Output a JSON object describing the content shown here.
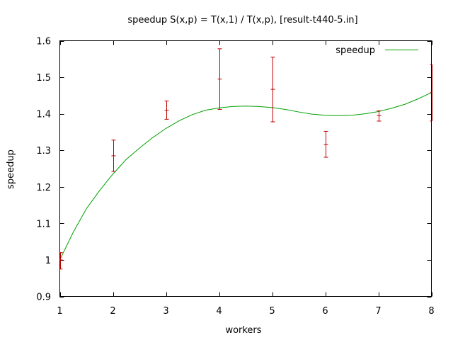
{
  "chart_data": {
    "type": "line",
    "title": "speedup S(x,p) = T(x,1) / T(x,p), [result-t440-5.in]",
    "xlabel": "workers",
    "ylabel": "speedup",
    "xlim": [
      1,
      8
    ],
    "ylim": [
      0.9,
      1.6
    ],
    "x_ticks": [
      1,
      2,
      3,
      4,
      5,
      6,
      7,
      8
    ],
    "y_ticks": [
      0.9,
      1.0,
      1.1,
      1.2,
      1.3,
      1.4,
      1.5,
      1.6
    ],
    "y_tick_labels": [
      "0.9",
      "1",
      "1.1",
      "1.2",
      "1.3",
      "1.4",
      "1.5",
      "1.6"
    ],
    "grid": false,
    "legend_position": "top-right",
    "legend": [
      {
        "label": "speedup",
        "color": "#00a000"
      }
    ],
    "error_bars": {
      "color": "#c00000",
      "points": [
        {
          "x": 1,
          "y": 1.0,
          "low": 0.975,
          "high": 1.02
        },
        {
          "x": 2,
          "y": 1.285,
          "low": 1.242,
          "high": 1.328
        },
        {
          "x": 3,
          "y": 1.41,
          "low": 1.385,
          "high": 1.435
        },
        {
          "x": 4,
          "y": 1.495,
          "low": 1.412,
          "high": 1.578
        },
        {
          "x": 5,
          "y": 1.467,
          "low": 1.378,
          "high": 1.555
        },
        {
          "x": 6,
          "y": 1.316,
          "low": 1.281,
          "high": 1.352
        },
        {
          "x": 7,
          "y": 1.395,
          "low": 1.38,
          "high": 1.408
        },
        {
          "x": 8,
          "y": 1.458,
          "low": 1.38,
          "high": 1.535
        }
      ]
    },
    "series": [
      {
        "name": "speedup",
        "color": "#00a000",
        "x": [
          1,
          1.25,
          1.5,
          1.75,
          2,
          2.25,
          2.5,
          2.75,
          3,
          3.25,
          3.5,
          3.75,
          4,
          4.25,
          4.5,
          4.75,
          5,
          5.25,
          5.5,
          5.75,
          6,
          6.25,
          6.5,
          6.75,
          7,
          7.25,
          7.5,
          7.75,
          8
        ],
        "y": [
          1.0,
          1.075,
          1.14,
          1.19,
          1.235,
          1.275,
          1.306,
          1.335,
          1.36,
          1.381,
          1.398,
          1.41,
          1.416,
          1.42,
          1.421,
          1.42,
          1.417,
          1.412,
          1.405,
          1.399,
          1.396,
          1.395,
          1.396,
          1.4,
          1.406,
          1.415,
          1.426,
          1.441,
          1.458
        ]
      }
    ]
  }
}
